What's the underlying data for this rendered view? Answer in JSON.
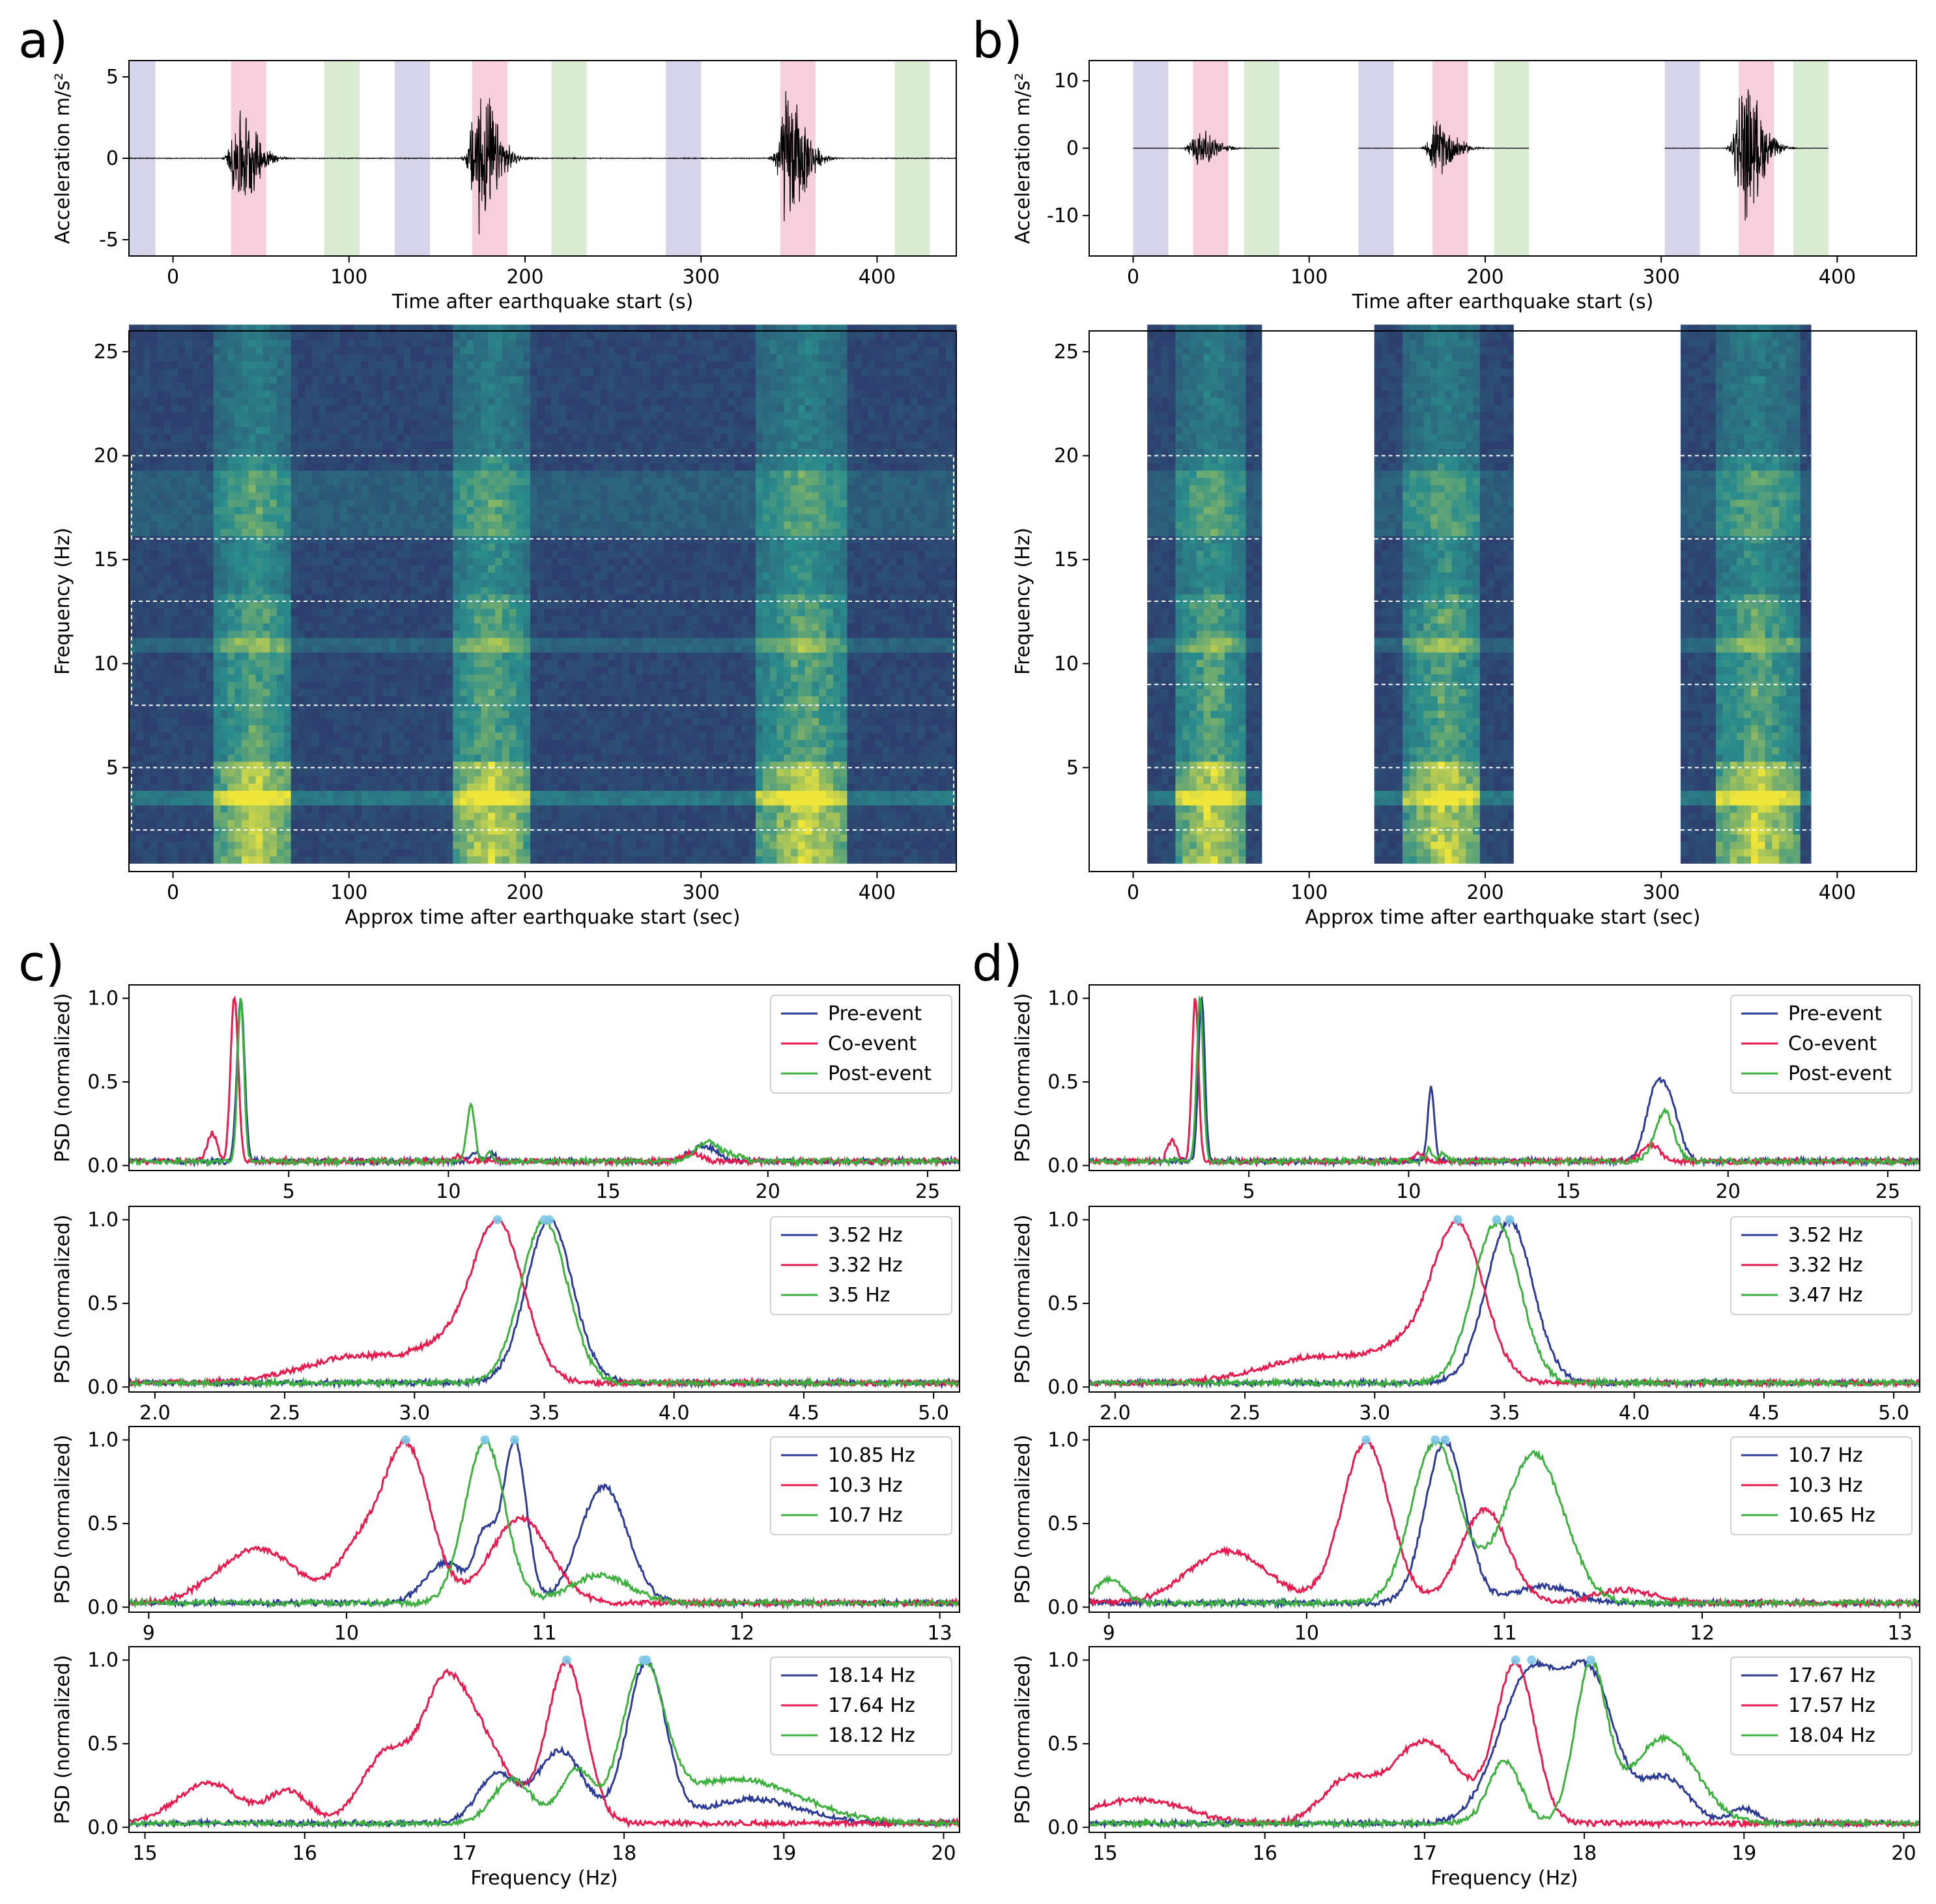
{
  "figure": {
    "panel_labels": [
      "a)",
      "b)",
      "c)",
      "d)"
    ]
  },
  "colors": {
    "pre": "#2b3a94",
    "co": "#e8194c",
    "post": "#3cb03c",
    "peak_marker": "#7ec8e8",
    "shade_pre": "#c9c9e6",
    "shade_co": "#f5c3d3",
    "shade_post": "#d1e8c9",
    "spectro_low": "#2e1f63",
    "spectro_mid": "#2a8c8c",
    "spectro_high": "#f0e63a"
  },
  "chart_data": [
    {
      "id": "a_top",
      "type": "line",
      "xlabel": "Time after earthquake start (s)",
      "ylabel": "Acceleration m/s²",
      "xlim": [
        -25,
        445
      ],
      "ylim": [
        -6,
        6
      ],
      "xticks": [
        0,
        100,
        200,
        300,
        400
      ],
      "yticks": [
        -5,
        0,
        5
      ],
      "shaded_windows": [
        {
          "kind": "pre",
          "x": [
            -25,
            -10
          ]
        },
        {
          "kind": "co",
          "x": [
            33,
            53
          ]
        },
        {
          "kind": "post",
          "x": [
            86,
            106
          ]
        },
        {
          "kind": "pre",
          "x": [
            126,
            146
          ]
        },
        {
          "kind": "co",
          "x": [
            170,
            190
          ]
        },
        {
          "kind": "post",
          "x": [
            215,
            235
          ]
        },
        {
          "kind": "pre",
          "x": [
            280,
            300
          ]
        },
        {
          "kind": "co",
          "x": [
            345,
            365
          ]
        },
        {
          "kind": "post",
          "x": [
            410,
            430
          ]
        }
      ],
      "events": [
        {
          "center": 45,
          "amplitude": 3.5
        },
        {
          "center": 181,
          "amplitude": 5.2
        },
        {
          "center": 356,
          "amplitude": 4.8
        }
      ]
    },
    {
      "id": "b_top",
      "type": "line",
      "xlabel": "Time after earthquake start (s)",
      "ylabel": "Acceleration m/s²",
      "xlim": [
        -25,
        445
      ],
      "ylim": [
        -16,
        13
      ],
      "xticks": [
        0,
        100,
        200,
        300,
        400
      ],
      "yticks": [
        -10,
        0,
        10
      ],
      "shaded_windows": [
        {
          "kind": "pre",
          "x": [
            0,
            20
          ]
        },
        {
          "kind": "co",
          "x": [
            34,
            54
          ]
        },
        {
          "kind": "post",
          "x": [
            63,
            83
          ]
        },
        {
          "kind": "pre",
          "x": [
            128,
            148
          ]
        },
        {
          "kind": "co",
          "x": [
            170,
            190
          ]
        },
        {
          "kind": "post",
          "x": [
            205,
            225
          ]
        },
        {
          "kind": "pre",
          "x": [
            302,
            322
          ]
        },
        {
          "kind": "co",
          "x": [
            344,
            364
          ]
        },
        {
          "kind": "post",
          "x": [
            375,
            395
          ]
        }
      ],
      "segments": [
        [
          0,
          83
        ],
        [
          128,
          225
        ],
        [
          302,
          395
        ]
      ],
      "events": [
        {
          "center": 44,
          "amplitude": 3.2
        },
        {
          "center": 180,
          "amplitude": 4.5
        },
        {
          "center": 354,
          "amplitude": 12.0
        }
      ]
    },
    {
      "id": "a_spec",
      "type": "heatmap",
      "xlabel": "Approx time after earthquake start (sec)",
      "ylabel": "Frequency (Hz)",
      "xlim": [
        -25,
        445
      ],
      "ylim": [
        0,
        26
      ],
      "xticks": [
        0,
        100,
        200,
        300,
        400
      ],
      "yticks": [
        5,
        10,
        15,
        20,
        25
      ],
      "event_columns": [
        [
          25,
          65
        ],
        [
          158,
          200
        ],
        [
          332,
          382
        ]
      ],
      "band_boxes": [
        [
          2,
          5
        ],
        [
          8,
          13
        ],
        [
          16,
          20
        ]
      ]
    },
    {
      "id": "b_spec",
      "type": "heatmap",
      "xlabel": "Approx time after earthquake start (sec)",
      "ylabel": "Frequency (Hz)",
      "xlim": [
        -25,
        445
      ],
      "ylim": [
        0,
        26
      ],
      "xticks": [
        0,
        100,
        200,
        300,
        400
      ],
      "yticks": [
        5,
        10,
        15,
        20,
        25
      ],
      "data_blocks": [
        [
          8,
          73
        ],
        [
          137,
          216
        ],
        [
          311,
          385
        ]
      ],
      "event_columns": [
        [
          25,
          60
        ],
        [
          155,
          195
        ],
        [
          330,
          375
        ]
      ],
      "band_lines": [
        2,
        5,
        9,
        13,
        16,
        20
      ]
    },
    {
      "id": "c1",
      "type": "line",
      "ylabel": "PSD (normalized)",
      "xlim": [
        0,
        26
      ],
      "ylim": [
        -0.03,
        1.08
      ],
      "xticks": [
        5,
        10,
        15,
        20,
        25
      ],
      "yticks": [
        0.0,
        0.5,
        1.0
      ],
      "legend": [
        "Pre-event",
        "Co-event",
        "Post-event"
      ],
      "peaks": {
        "pre": [
          [
            3.5,
            1.0,
            0.12
          ],
          [
            10.85,
            0.06,
            0.15
          ],
          [
            11.4,
            0.05,
            0.1
          ],
          [
            17.7,
            0.06,
            0.3
          ],
          [
            18.2,
            0.07,
            0.3
          ]
        ],
        "co": [
          [
            3.3,
            1.0,
            0.12
          ],
          [
            2.6,
            0.17,
            0.15
          ],
          [
            10.3,
            0.03,
            0.15
          ],
          [
            17.6,
            0.05,
            0.3
          ]
        ],
        "post": [
          [
            3.5,
            1.0,
            0.1
          ],
          [
            10.7,
            0.36,
            0.12
          ],
          [
            11.3,
            0.05,
            0.1
          ],
          [
            18.1,
            0.12,
            0.35
          ],
          [
            18.9,
            0.04,
            0.3
          ]
        ]
      }
    },
    {
      "id": "c2",
      "type": "line",
      "ylabel": "PSD (normalized)",
      "xlim": [
        1.9,
        5.1
      ],
      "ylim": [
        -0.03,
        1.08
      ],
      "xticks": [
        2.0,
        2.5,
        3.0,
        3.5,
        4.0,
        4.5,
        5.0
      ],
      "yticks": [
        0.0,
        0.5,
        1.0
      ],
      "legend": [
        "3.52 Hz",
        "3.32 Hz",
        "3.5 Hz"
      ],
      "peak_freqs": [
        3.52,
        3.32,
        3.5
      ],
      "peaks": {
        "pre": [
          [
            3.52,
            1.0,
            0.09
          ]
        ],
        "co": [
          [
            3.32,
            1.0,
            0.1
          ],
          [
            2.8,
            0.17,
            0.22
          ],
          [
            3.1,
            0.15,
            0.1
          ]
        ],
        "post": [
          [
            3.5,
            1.0,
            0.09
          ]
        ]
      }
    },
    {
      "id": "c3",
      "type": "line",
      "ylabel": "PSD (normalized)",
      "xlim": [
        8.9,
        13.1
      ],
      "ylim": [
        -0.03,
        1.08
      ],
      "xticks": [
        9,
        10,
        11,
        12,
        13
      ],
      "yticks": [
        0.0,
        0.5,
        1.0
      ],
      "legend": [
        "10.85 Hz",
        "10.3 Hz",
        "10.7 Hz"
      ],
      "peak_freqs": [
        10.85,
        10.3,
        10.7
      ],
      "peaks": {
        "pre": [
          [
            10.85,
            1.0,
            0.06
          ],
          [
            10.5,
            0.25,
            0.1
          ],
          [
            11.3,
            0.72,
            0.12
          ],
          [
            10.7,
            0.4,
            0.05
          ]
        ],
        "co": [
          [
            10.3,
            1.0,
            0.12
          ],
          [
            9.55,
            0.34,
            0.2
          ],
          [
            10.05,
            0.3,
            0.1
          ],
          [
            10.88,
            0.53,
            0.15
          ]
        ],
        "post": [
          [
            10.7,
            1.0,
            0.1
          ],
          [
            11.28,
            0.17,
            0.15
          ]
        ]
      }
    },
    {
      "id": "c4",
      "type": "line",
      "ylabel": "PSD (normalized)",
      "xlabel": "Frequency (Hz)",
      "xlim": [
        14.9,
        20.1
      ],
      "ylim": [
        -0.03,
        1.08
      ],
      "xticks": [
        15,
        16,
        17,
        18,
        19,
        20
      ],
      "yticks": [
        0.0,
        0.5,
        1.0
      ],
      "legend": [
        "18.14 Hz",
        "17.64 Hz",
        "18.12 Hz"
      ],
      "peak_freqs": [
        18.14,
        17.64,
        18.12
      ],
      "peaks": {
        "pre": [
          [
            18.14,
            1.0,
            0.12
          ],
          [
            17.6,
            0.45,
            0.15
          ],
          [
            17.2,
            0.3,
            0.12
          ],
          [
            18.8,
            0.15,
            0.3
          ]
        ],
        "co": [
          [
            17.64,
            1.0,
            0.12
          ],
          [
            17.0,
            0.68,
            0.22
          ],
          [
            16.5,
            0.4,
            0.15
          ],
          [
            16.85,
            0.35,
            0.12
          ],
          [
            15.4,
            0.25,
            0.2
          ],
          [
            15.9,
            0.2,
            0.12
          ]
        ],
        "post": [
          [
            18.12,
            1.0,
            0.13
          ],
          [
            18.7,
            0.3,
            0.4
          ],
          [
            17.3,
            0.3,
            0.12
          ],
          [
            17.7,
            0.35,
            0.1
          ]
        ]
      }
    },
    {
      "id": "d1",
      "type": "line",
      "ylabel": "PSD (normalized)",
      "xlim": [
        0,
        26
      ],
      "ylim": [
        -0.03,
        1.08
      ],
      "xticks": [
        5,
        10,
        15,
        20,
        25
      ],
      "yticks": [
        0.0,
        0.5,
        1.0
      ],
      "legend": [
        "Pre-event",
        "Co-event",
        "Post-event"
      ],
      "peaks": {
        "pre": [
          [
            3.52,
            1.0,
            0.1
          ],
          [
            10.7,
            0.45,
            0.1
          ],
          [
            17.7,
            0.38,
            0.3
          ],
          [
            18.2,
            0.3,
            0.3
          ]
        ],
        "co": [
          [
            3.32,
            1.0,
            0.1
          ],
          [
            2.6,
            0.13,
            0.15
          ],
          [
            10.3,
            0.04,
            0.15
          ],
          [
            17.6,
            0.1,
            0.3
          ]
        ],
        "post": [
          [
            3.47,
            1.0,
            0.1
          ],
          [
            10.65,
            0.07,
            0.12
          ],
          [
            11.1,
            0.05,
            0.1
          ],
          [
            18.0,
            0.3,
            0.3
          ]
        ]
      }
    },
    {
      "id": "d2",
      "type": "line",
      "ylabel": "PSD (normalized)",
      "xlim": [
        1.9,
        5.1
      ],
      "ylim": [
        -0.03,
        1.08
      ],
      "xticks": [
        2.0,
        2.5,
        3.0,
        3.5,
        4.0,
        4.5,
        5.0
      ],
      "yticks": [
        0.0,
        0.5,
        1.0
      ],
      "legend": [
        "3.52 Hz",
        "3.32 Hz",
        "3.47 Hz"
      ],
      "peak_freqs": [
        3.52,
        3.32,
        3.47
      ],
      "peaks": {
        "pre": [
          [
            3.52,
            1.0,
            0.09
          ]
        ],
        "co": [
          [
            3.32,
            1.0,
            0.1
          ],
          [
            2.8,
            0.17,
            0.22
          ],
          [
            3.1,
            0.15,
            0.1
          ]
        ],
        "post": [
          [
            3.47,
            1.0,
            0.09
          ]
        ]
      }
    },
    {
      "id": "d3",
      "type": "line",
      "ylabel": "PSD (normalized)",
      "xlim": [
        8.9,
        13.1
      ],
      "ylim": [
        -0.03,
        1.08
      ],
      "xticks": [
        9,
        10,
        11,
        12,
        13
      ],
      "yticks": [
        0.0,
        0.5,
        1.0
      ],
      "legend": [
        "10.7 Hz",
        "10.3 Hz",
        "10.65 Hz"
      ],
      "peak_freqs": [
        10.7,
        10.3,
        10.65
      ],
      "peaks": {
        "pre": [
          [
            10.7,
            1.0,
            0.1
          ],
          [
            11.2,
            0.1,
            0.15
          ]
        ],
        "co": [
          [
            10.3,
            1.0,
            0.12
          ],
          [
            9.6,
            0.32,
            0.2
          ],
          [
            10.9,
            0.58,
            0.12
          ],
          [
            11.6,
            0.08,
            0.15
          ]
        ],
        "post": [
          [
            10.65,
            1.0,
            0.12
          ],
          [
            11.15,
            0.93,
            0.15
          ],
          [
            9.0,
            0.15,
            0.07
          ]
        ]
      }
    },
    {
      "id": "d4",
      "type": "line",
      "ylabel": "PSD (normalized)",
      "xlabel": "Frequency (Hz)",
      "xlim": [
        14.9,
        20.1
      ],
      "ylim": [
        -0.03,
        1.08
      ],
      "xticks": [
        15,
        16,
        17,
        18,
        19,
        20
      ],
      "yticks": [
        0.0,
        0.5,
        1.0
      ],
      "legend": [
        "17.67 Hz",
        "17.57 Hz",
        "18.04 Hz"
      ],
      "peak_freqs": [
        17.67,
        17.57,
        18.04
      ],
      "peaks": {
        "pre": [
          [
            17.67,
            1.0,
            0.2
          ],
          [
            18.05,
            0.85,
            0.15
          ],
          [
            18.5,
            0.3,
            0.15
          ],
          [
            19.0,
            0.1,
            0.08
          ]
        ],
        "co": [
          [
            17.57,
            1.0,
            0.12
          ],
          [
            17.0,
            0.52,
            0.22
          ],
          [
            16.5,
            0.25,
            0.15
          ],
          [
            15.2,
            0.15,
            0.3
          ]
        ],
        "post": [
          [
            18.04,
            1.0,
            0.1
          ],
          [
            18.5,
            0.55,
            0.2
          ],
          [
            17.5,
            0.4,
            0.1
          ]
        ]
      }
    }
  ]
}
